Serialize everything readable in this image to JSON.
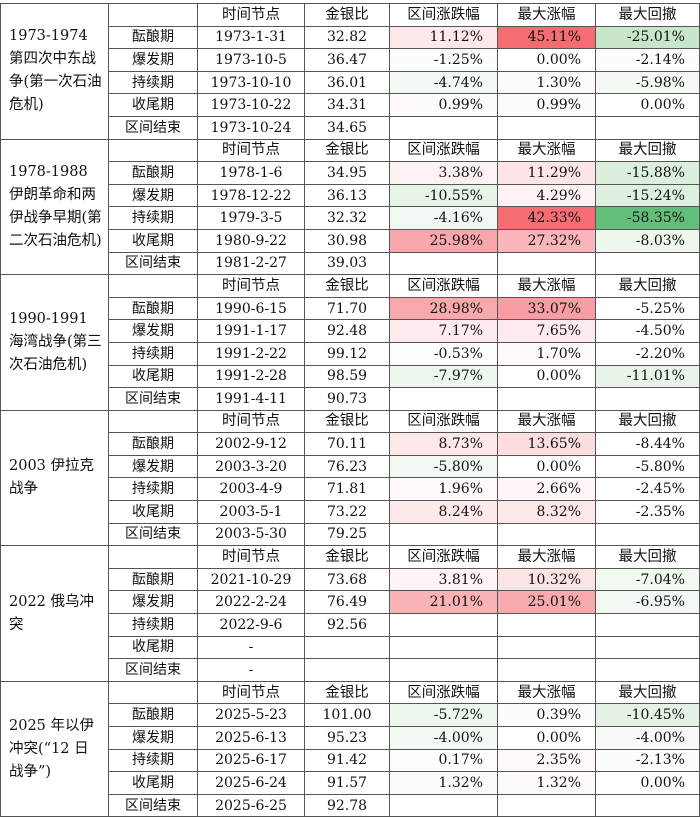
{
  "headers": [
    "时间节点",
    "金银比",
    "区间涨跌幅",
    "最大涨幅",
    "最大回撤"
  ],
  "sections": [
    {
      "event": "1973-1974 第四次中东战争(第一次石油危机)",
      "rows": [
        {
          "phase": "酝酿期",
          "date": "1973-1-31",
          "ratio": "32.82",
          "change": "11.12%",
          "change_bg": "#fde8ea",
          "max_gain": "45.11%",
          "max_gain_bg": "#f56c73",
          "max_dd": "-25.01%",
          "max_dd_bg": "#c8e6c9"
        },
        {
          "phase": "爆发期",
          "date": "1973-10-5",
          "ratio": "36.47",
          "change": "-1.25%",
          "change_bg": "#fbfdfb",
          "max_gain": "0.00%",
          "max_gain_bg": "#ffffff",
          "max_dd": "-2.14%",
          "max_dd_bg": "#fbfdfb"
        },
        {
          "phase": "持续期",
          "date": "1973-10-10",
          "ratio": "36.01",
          "change": "-4.74%",
          "change_bg": "#f2f8f2",
          "max_gain": "1.30%",
          "max_gain_bg": "#fffafa",
          "max_dd": "-5.98%",
          "max_dd_bg": "#f4f9f4"
        },
        {
          "phase": "收尾期",
          "date": "1973-10-22",
          "ratio": "34.31",
          "change": "0.99%",
          "change_bg": "#fffafa",
          "max_gain": "0.99%",
          "max_gain_bg": "#fffafa",
          "max_dd": "0.00%",
          "max_dd_bg": "#ffffff"
        },
        {
          "phase": "区间结束",
          "date": "1973-10-24",
          "ratio": "34.65",
          "change": "",
          "change_bg": "",
          "max_gain": "",
          "max_gain_bg": "",
          "max_dd": "",
          "max_dd_bg": ""
        }
      ]
    },
    {
      "event": "1978-1988 伊朗革命和两伊战争早期(第二次石油危机)",
      "rows": [
        {
          "phase": "酝酿期",
          "date": "1978-1-6",
          "ratio": "34.95",
          "change": "3.38%",
          "change_bg": "#fdf1f2",
          "max_gain": "11.29%",
          "max_gain_bg": "#fde4e6",
          "max_dd": "-15.88%",
          "max_dd_bg": "#dcefdd"
        },
        {
          "phase": "爆发期",
          "date": "1978-12-22",
          "ratio": "36.13",
          "change": "-10.55%",
          "change_bg": "#e6f3e7",
          "max_gain": "4.29%",
          "max_gain_bg": "#fdf3f4",
          "max_dd": "-15.24%",
          "max_dd_bg": "#ddefde"
        },
        {
          "phase": "持续期",
          "date": "1979-3-5",
          "ratio": "32.32",
          "change": "-4.16%",
          "change_bg": "#f1f8f1",
          "max_gain": "42.33%",
          "max_gain_bg": "#f56c73",
          "max_dd": "-58.35%",
          "max_dd_bg": "#63be7b"
        },
        {
          "phase": "收尾期",
          "date": "1980-9-22",
          "ratio": "30.98",
          "change": "25.98%",
          "change_bg": "#f8a7ac",
          "max_gain": "27.32%",
          "max_gain_bg": "#f9b5b9",
          "max_dd": "-8.03%",
          "max_dd_bg": "#eef7ee"
        },
        {
          "phase": "区间结束",
          "date": "1981-2-27",
          "ratio": "39.03",
          "change": "",
          "change_bg": "",
          "max_gain": "",
          "max_gain_bg": "",
          "max_dd": "",
          "max_dd_bg": ""
        }
      ]
    },
    {
      "event": "1990-1991 海湾战争(第三次石油危机)",
      "rows": [
        {
          "phase": "酝酿期",
          "date": "1990-6-15",
          "ratio": "71.70",
          "change": "28.98%",
          "change_bg": "#f9a9ae",
          "max_gain": "33.07%",
          "max_gain_bg": "#f89da3",
          "max_dd": "-5.25%",
          "max_dd_bg": "#ffffff"
        },
        {
          "phase": "爆发期",
          "date": "1991-1-17",
          "ratio": "92.48",
          "change": "7.17%",
          "change_bg": "#fdeaec",
          "max_gain": "7.65%",
          "max_gain_bg": "#fdeaec",
          "max_dd": "-4.50%",
          "max_dd_bg": "#ffffff"
        },
        {
          "phase": "持续期",
          "date": "1991-2-22",
          "ratio": "99.12",
          "change": "-0.53%",
          "change_bg": "#fcfefc",
          "max_gain": "1.70%",
          "max_gain_bg": "#fffafa",
          "max_dd": "-2.20%",
          "max_dd_bg": "#ffffff"
        },
        {
          "phase": "收尾期",
          "date": "1991-2-28",
          "ratio": "98.59",
          "change": "-7.97%",
          "change_bg": "#edf6ed",
          "max_gain": "0.00%",
          "max_gain_bg": "#ffffff",
          "max_dd": "-11.01%",
          "max_dd_bg": "#e8f4e8"
        },
        {
          "phase": "区间结束",
          "date": "1991-4-11",
          "ratio": "90.73",
          "change": "",
          "change_bg": "",
          "max_gain": "",
          "max_gain_bg": "",
          "max_dd": "",
          "max_dd_bg": ""
        }
      ]
    },
    {
      "event": "2003 伊拉克战争",
      "rows": [
        {
          "phase": "酝酿期",
          "date": "2002-9-12",
          "ratio": "70.11",
          "change": "8.73%",
          "change_bg": "#fde7e9",
          "max_gain": "13.65%",
          "max_gain_bg": "#fcdee1",
          "max_dd": "-8.44%",
          "max_dd_bg": "#ffffff"
        },
        {
          "phase": "爆发期",
          "date": "2003-3-20",
          "ratio": "76.23",
          "change": "-5.80%",
          "change_bg": "#f1f8f1",
          "max_gain": "0.00%",
          "max_gain_bg": "#ffffff",
          "max_dd": "-5.80%",
          "max_dd_bg": "#ffffff"
        },
        {
          "phase": "持续期",
          "date": "2003-4-9",
          "ratio": "71.81",
          "change": "1.96%",
          "change_bg": "#fff8f8",
          "max_gain": "2.66%",
          "max_gain_bg": "#fff7f7",
          "max_dd": "-2.45%",
          "max_dd_bg": "#ffffff"
        },
        {
          "phase": "收尾期",
          "date": "2003-5-1",
          "ratio": "73.22",
          "change": "8.24%",
          "change_bg": "#fde8ea",
          "max_gain": "8.32%",
          "max_gain_bg": "#fde8ea",
          "max_dd": "-2.35%",
          "max_dd_bg": "#ffffff"
        },
        {
          "phase": "区间结束",
          "date": "2003-5-30",
          "ratio": "79.25",
          "change": "",
          "change_bg": "",
          "max_gain": "",
          "max_gain_bg": "",
          "max_dd": "",
          "max_dd_bg": ""
        }
      ]
    },
    {
      "event": "2022 俄乌冲突",
      "rows": [
        {
          "phase": "酝酿期",
          "date": "2021-10-29",
          "ratio": "73.68",
          "change": "3.81%",
          "change_bg": "#fef4f5",
          "max_gain": "10.32%",
          "max_gain_bg": "#fce3e5",
          "max_dd": "-7.04%",
          "max_dd_bg": "#f0f8f0"
        },
        {
          "phase": "爆发期",
          "date": "2022-2-24",
          "ratio": "76.49",
          "change": "21.01%",
          "change_bg": "#f9b3b7",
          "max_gain": "25.01%",
          "max_gain_bg": "#f8aaaf",
          "max_dd": "-6.95%",
          "max_dd_bg": "#f1f8f1"
        },
        {
          "phase": "持续期",
          "date": "2022-9-6",
          "ratio": "92.56",
          "change": "",
          "change_bg": "",
          "max_gain": "",
          "max_gain_bg": "",
          "max_dd": "",
          "max_dd_bg": ""
        },
        {
          "phase": "收尾期",
          "date": "-",
          "ratio": "",
          "change": "",
          "change_bg": "",
          "max_gain": "",
          "max_gain_bg": "",
          "max_dd": "",
          "max_dd_bg": ""
        },
        {
          "phase": "区间结束",
          "date": "-",
          "ratio": "",
          "change": "",
          "change_bg": "",
          "max_gain": "",
          "max_gain_bg": "",
          "max_dd": "",
          "max_dd_bg": ""
        }
      ]
    },
    {
      "event": "2025 年以伊冲突(“12 日战争”)",
      "rows": [
        {
          "phase": "酝酿期",
          "date": "2025-5-23",
          "ratio": "101.00",
          "change": "-5.72%",
          "change_bg": "#eef7ee",
          "max_gain": "0.39%",
          "max_gain_bg": "#fffbfb",
          "max_dd": "-10.45%",
          "max_dd_bg": "#e4f2e5"
        },
        {
          "phase": "爆发期",
          "date": "2025-6-13",
          "ratio": "95.23",
          "change": "-4.00%",
          "change_bg": "#f3f9f3",
          "max_gain": "0.00%",
          "max_gain_bg": "#ffffff",
          "max_dd": "-4.00%",
          "max_dd_bg": "#f6fbf6"
        },
        {
          "phase": "持续期",
          "date": "2025-6-17",
          "ratio": "91.42",
          "change": "0.17%",
          "change_bg": "#fffcfc",
          "max_gain": "2.35%",
          "max_gain_bg": "#fff8f8",
          "max_dd": "-2.13%",
          "max_dd_bg": "#fbfdfb"
        },
        {
          "phase": "收尾期",
          "date": "2025-6-24",
          "ratio": "91.57",
          "change": "1.32%",
          "change_bg": "#fffafa",
          "max_gain": "1.32%",
          "max_gain_bg": "#fffafa",
          "max_dd": "0.00%",
          "max_dd_bg": "#ffffff"
        },
        {
          "phase": "区间结束",
          "date": "2025-6-25",
          "ratio": "92.78",
          "change": "",
          "change_bg": "",
          "max_gain": "",
          "max_gain_bg": "",
          "max_dd": "",
          "max_dd_bg": ""
        }
      ]
    }
  ]
}
